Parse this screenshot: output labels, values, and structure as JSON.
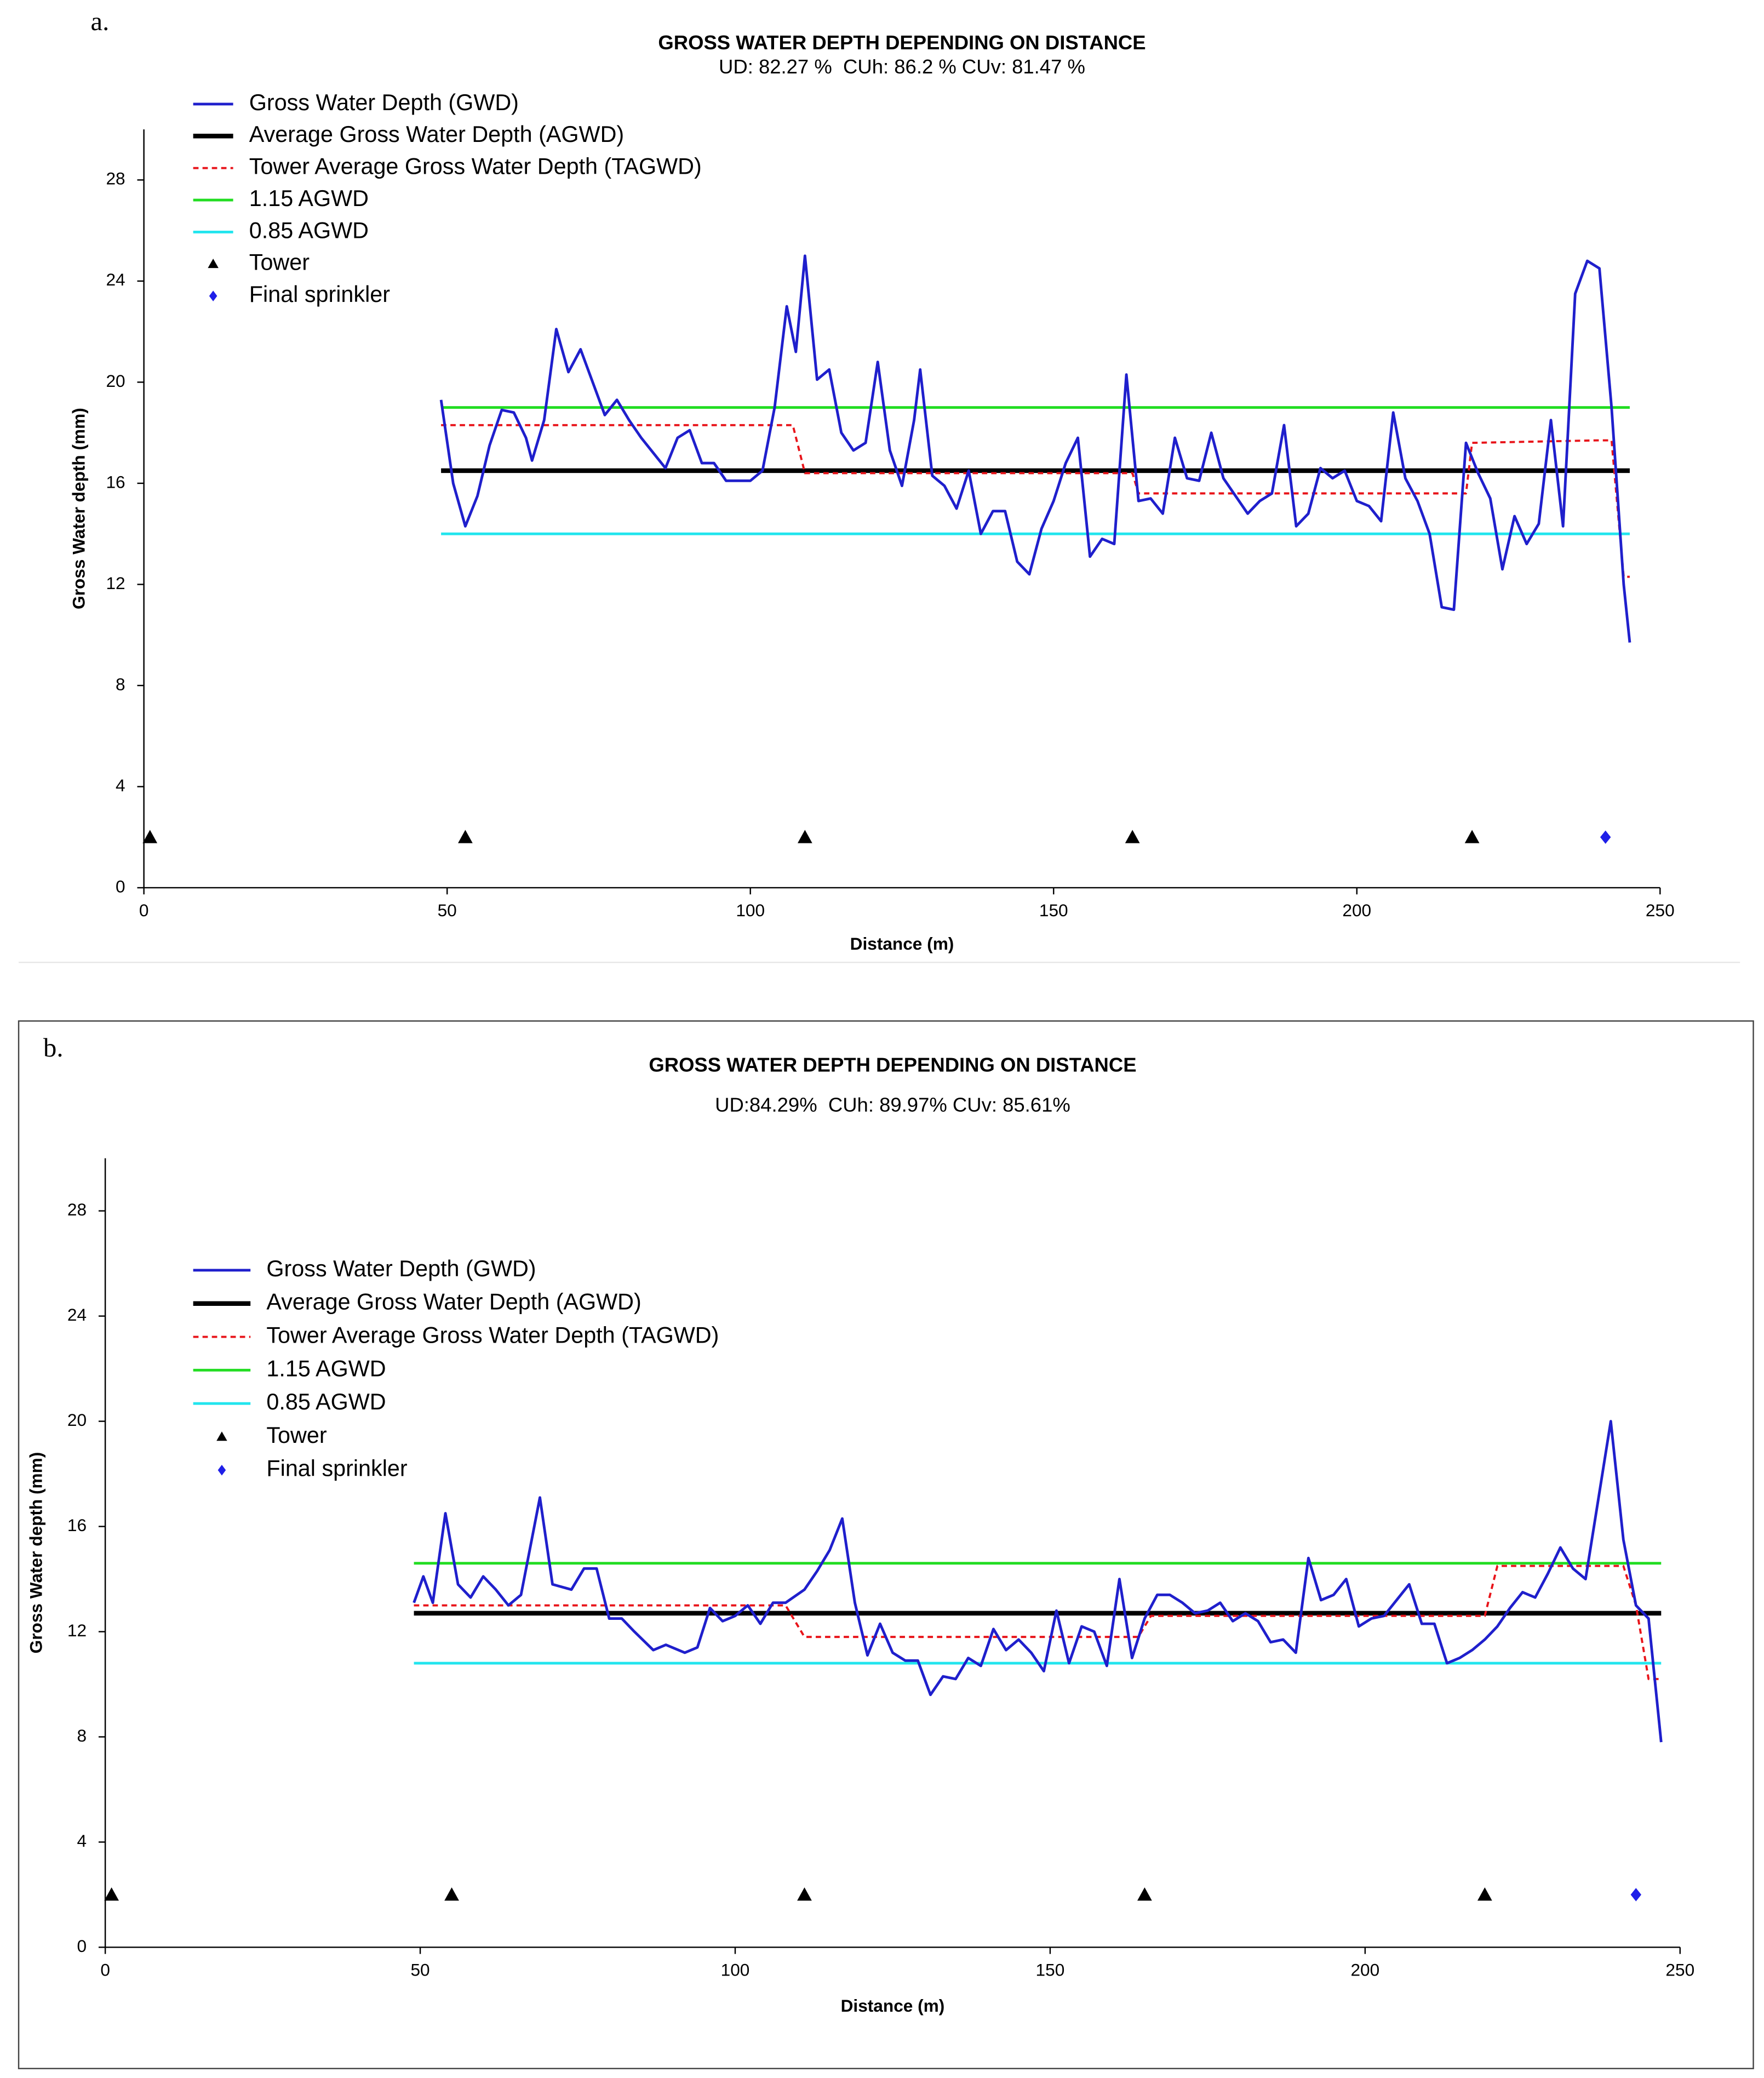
{
  "chart_data": [
    {
      "type": "line",
      "label": "a.",
      "title": "GROSS WATER DEPTH DEPENDING ON DISTANCE",
      "subtitle": "UD: 82.27 %  CUh: 86.2 % CUv: 81.47 %",
      "x_label": "Distance (m)",
      "y_label": "Gross Water depth (mm)",
      "xlim": [
        0,
        250
      ],
      "xticks": [
        0,
        50,
        100,
        150,
        200,
        250
      ],
      "ylim": [
        0,
        30
      ],
      "yticks": [
        0,
        4,
        8,
        12,
        16,
        20,
        24,
        28
      ],
      "series": [
        {
          "name": "Gross Water Depth (GWD)",
          "color": "#1f1fcc",
          "style": "solid",
          "linewidth": 2,
          "x": [
            49,
            51,
            53,
            55,
            57,
            59,
            61,
            63,
            64,
            66,
            68,
            70,
            72,
            74,
            76,
            78,
            80,
            82,
            84,
            86,
            88,
            90,
            92,
            94,
            96,
            98,
            100,
            102,
            104,
            106,
            107.5,
            109,
            111,
            113,
            115,
            117,
            119,
            121,
            123,
            125,
            127,
            128,
            130,
            132,
            134,
            136,
            138,
            140,
            142,
            144,
            146,
            148,
            150,
            152,
            154,
            156,
            158,
            160,
            162,
            164,
            166,
            168,
            170,
            172,
            174,
            176,
            178,
            180,
            182,
            184,
            186,
            188,
            190,
            192,
            194,
            196,
            198,
            200,
            202,
            204,
            206,
            208,
            210,
            212,
            214,
            216,
            218,
            220,
            222,
            224,
            226,
            228,
            230,
            232,
            234,
            236,
            238,
            240,
            242,
            244,
            245
          ],
          "values": [
            19.3,
            16,
            14.3,
            15.5,
            17.5,
            18.9,
            18.8,
            17.8,
            16.9,
            18.5,
            22.1,
            20.4,
            21.3,
            20,
            18.7,
            19.3,
            18.5,
            17.8,
            17.2,
            16.6,
            17.8,
            18.1,
            16.8,
            16.8,
            16.1,
            16.1,
            16.1,
            16.5,
            19,
            23,
            21.2,
            25,
            20.1,
            20.5,
            18,
            17.3,
            17.6,
            20.8,
            17.3,
            15.9,
            18.5,
            20.5,
            16.3,
            15.9,
            15,
            16.5,
            14,
            14.9,
            14.9,
            12.9,
            12.4,
            14.2,
            15.3,
            16.8,
            17.8,
            13.1,
            13.8,
            13.6,
            20.3,
            15.3,
            15.4,
            14.8,
            17.8,
            16.2,
            16.1,
            18,
            16.2,
            15.5,
            14.8,
            15.3,
            15.6,
            18.3,
            14.3,
            14.8,
            16.6,
            16.2,
            16.5,
            15.3,
            15.1,
            14.5,
            18.8,
            16.2,
            15.3,
            14,
            11.1,
            11,
            17.6,
            16.4,
            15.4,
            12.6,
            14.7,
            13.6,
            14.4,
            18.5,
            14.3,
            23.5,
            24.8,
            24.5,
            19,
            12,
            9.7
          ]
        },
        {
          "name": "Average Gross Water Depth (AGWD)",
          "color": "#000000",
          "style": "solid",
          "linewidth": 3.5,
          "x": [
            49,
            245
          ],
          "values": [
            16.5,
            16.5
          ]
        },
        {
          "name": "Tower Average Gross Water Depth (TAGWD)",
          "color": "#e8141a",
          "style": "dashed",
          "linewidth": 1.6,
          "x": [
            49,
            107,
            109,
            163,
            164,
            218,
            219,
            240,
            242,
            244,
            245
          ],
          "values": [
            18.3,
            18.3,
            16.4,
            16.4,
            15.6,
            15.6,
            17.6,
            17.7,
            17.7,
            12.3,
            12.3
          ]
        },
        {
          "name": "1.15 AGWD",
          "color": "#22dd22",
          "style": "solid",
          "linewidth": 2,
          "x": [
            49,
            245
          ],
          "values": [
            19,
            19
          ]
        },
        {
          "name": "0.85 AGWD",
          "color": "#22e5ee",
          "style": "solid",
          "linewidth": 2,
          "x": [
            49,
            245
          ],
          "values": [
            14,
            14
          ]
        },
        {
          "name": "Tower",
          "color": "#000000",
          "marker": "triangle",
          "x": [
            1,
            53,
            109,
            163,
            219
          ],
          "values": [
            2,
            2,
            2,
            2,
            2
          ]
        },
        {
          "name": "Final sprinkler",
          "color": "#1f1fe8",
          "marker": "diamond",
          "x": [
            241
          ],
          "values": [
            2
          ]
        }
      ]
    },
    {
      "type": "line",
      "label": "b.",
      "title": "GROSS WATER DEPTH DEPENDING ON DISTANCE",
      "subtitle": "UD:84.29%  CUh: 89.97% CUv: 85.61%",
      "x_label": "Distance (m)",
      "y_label": "Gross Water depth (mm)",
      "xlim": [
        0,
        250
      ],
      "xticks": [
        0,
        50,
        100,
        150,
        200,
        250
      ],
      "ylim": [
        0,
        30
      ],
      "yticks": [
        0,
        4,
        8,
        12,
        16,
        20,
        24,
        28
      ],
      "series": [
        {
          "name": "Gross Water Depth (GWD)",
          "color": "#1f1fcc",
          "style": "solid",
          "linewidth": 2,
          "x": [
            49,
            50.5,
            52,
            54,
            56,
            58,
            60,
            62,
            64,
            66,
            69,
            71,
            74,
            76,
            78,
            80,
            82,
            84,
            87,
            89,
            92,
            94,
            96,
            98,
            100,
            102,
            104,
            106,
            108,
            111,
            113,
            115,
            117,
            119,
            121,
            123,
            125,
            127,
            129,
            131,
            133,
            135,
            137,
            139,
            141,
            143,
            145,
            147,
            149,
            151,
            153,
            155,
            157,
            159,
            161,
            163,
            165,
            167,
            169,
            171,
            173,
            175,
            177,
            179,
            181,
            183,
            185,
            187,
            189,
            191,
            193,
            195,
            197,
            199,
            201,
            203,
            205,
            207,
            209,
            211,
            213,
            215,
            217,
            219,
            221,
            223,
            225,
            227,
            229,
            231,
            233,
            235,
            237,
            239,
            241,
            243,
            245,
            247
          ],
          "values": [
            13.1,
            14.1,
            13.1,
            16.5,
            13.8,
            13.3,
            14.1,
            13.6,
            13,
            13.4,
            17.1,
            13.8,
            13.6,
            14.4,
            14.4,
            12.5,
            12.5,
            12,
            11.3,
            11.5,
            11.2,
            11.4,
            12.9,
            12.4,
            12.6,
            13,
            12.3,
            13.1,
            13.1,
            13.6,
            14.3,
            15.1,
            16.3,
            13.1,
            11.1,
            12.3,
            11.2,
            10.9,
            10.9,
            9.6,
            10.3,
            10.2,
            11,
            10.7,
            12.1,
            11.3,
            11.7,
            11.2,
            10.5,
            12.8,
            10.8,
            12.2,
            12,
            10.7,
            14,
            11,
            12.5,
            13.4,
            13.4,
            13.1,
            12.7,
            12.8,
            13.1,
            12.4,
            12.7,
            12.4,
            11.6,
            11.7,
            11.2,
            14.8,
            13.2,
            13.4,
            14,
            12.2,
            12.5,
            12.6,
            13.2,
            13.8,
            12.3,
            12.3,
            10.8,
            11,
            11.3,
            11.7,
            12.2,
            12.9,
            13.5,
            13.3,
            14.2,
            15.2,
            14.4,
            14,
            17,
            20,
            15.5,
            13,
            12.5,
            7.8
          ]
        },
        {
          "name": "Average Gross Water Depth (AGWD)",
          "color": "#000000",
          "style": "solid",
          "linewidth": 3.5,
          "x": [
            49,
            247
          ],
          "values": [
            12.7,
            12.7
          ]
        },
        {
          "name": "Tower Average Gross Water Depth (TAGWD)",
          "color": "#e8141a",
          "style": "dashed",
          "linewidth": 1.6,
          "x": [
            49,
            108,
            111,
            164,
            166,
            219,
            221,
            241,
            243,
            245,
            247
          ],
          "values": [
            13,
            13,
            11.8,
            11.8,
            12.6,
            12.6,
            14.5,
            14.5,
            13,
            10.2,
            10.2
          ]
        },
        {
          "name": "1.15 AGWD",
          "color": "#22dd22",
          "style": "solid",
          "linewidth": 2,
          "x": [
            49,
            247
          ],
          "values": [
            14.6,
            14.6
          ]
        },
        {
          "name": "0.85 AGWD",
          "color": "#22e5ee",
          "style": "solid",
          "linewidth": 2,
          "x": [
            49,
            247
          ],
          "values": [
            10.8,
            10.8
          ]
        },
        {
          "name": "Tower",
          "color": "#000000",
          "marker": "triangle",
          "x": [
            1,
            55,
            111,
            165,
            219
          ],
          "values": [
            2,
            2,
            2,
            2,
            2
          ]
        },
        {
          "name": "Final sprinkler",
          "color": "#1f1fe8",
          "marker": "diamond",
          "x": [
            243
          ],
          "values": [
            2
          ]
        }
      ]
    }
  ]
}
